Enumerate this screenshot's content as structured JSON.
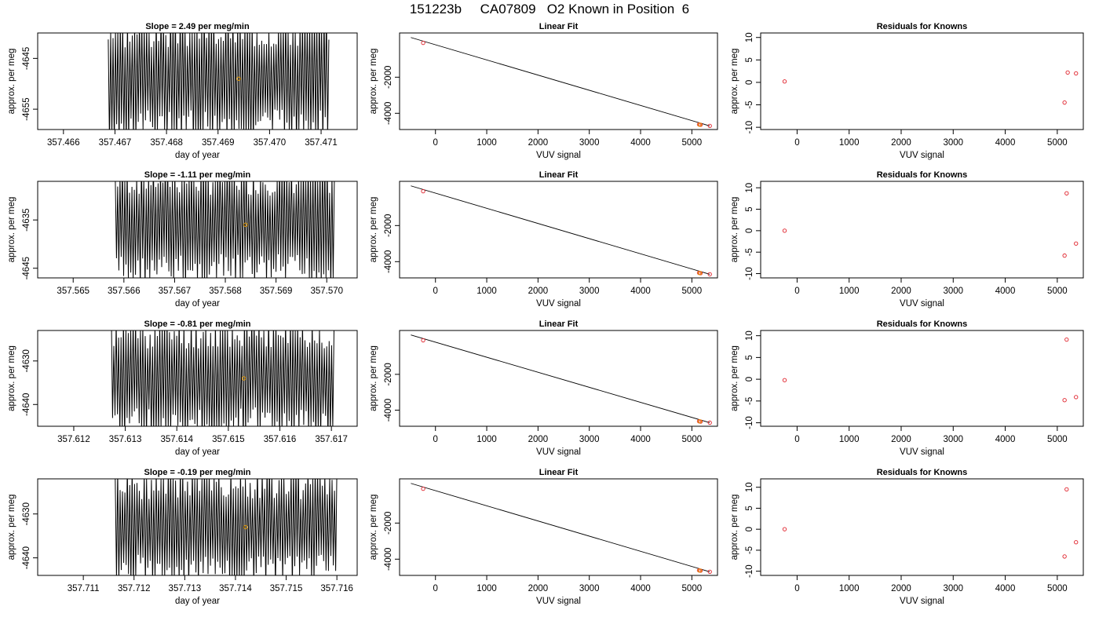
{
  "figure": {
    "title": "151223b     CA07809   O2 Known in Position  6"
  },
  "colors": {
    "line": "#000000",
    "marker_known": "#e0202a",
    "marker_current": "#e69a00",
    "frame": "#000000"
  },
  "chart_data": [
    {
      "type": "line",
      "row": 0,
      "title": "Slope =  2.49  per meg/min",
      "xlabel": "day of year",
      "ylabel": "approx. per meg",
      "xlim": [
        357.4655,
        357.4717
      ],
      "ylim": [
        -4659,
        -4640
      ],
      "xticks": [
        357.466,
        357.467,
        357.468,
        357.469,
        357.47,
        357.471
      ],
      "xtick_labels": [
        "357.466",
        "357.467",
        "357.468",
        "357.469",
        "357.470",
        "357.471"
      ],
      "yticks": [
        -4645,
        -4655
      ],
      "ytick_labels": [
        "-4645",
        "-4655"
      ],
      "signal": {
        "x_start": 357.46687,
        "x_end": 357.47115,
        "center": -4649,
        "amplitude": 11,
        "cycles": 92,
        "seed": 3
      },
      "current_point": {
        "x": 357.4694,
        "y": -4649
      }
    },
    {
      "type": "scatter",
      "row": 0,
      "title": "Linear Fit",
      "xlabel": "VUV signal",
      "ylabel": "approx. per meg",
      "xlim": [
        -700,
        5500
      ],
      "ylim": [
        -4900,
        450
      ],
      "xticks": [
        0,
        1000,
        2000,
        3000,
        4000,
        5000
      ],
      "xtick_labels": [
        "0",
        "1000",
        "2000",
        "3000",
        "4000",
        "5000"
      ],
      "yticks": [
        -2000,
        -4000
      ],
      "ytick_labels": [
        "-2000",
        "-4000"
      ],
      "fit_line": {
        "x": [
          -480,
          5350
        ],
        "y": [
          200,
          -4700
        ]
      },
      "points": [
        {
          "x": -240,
          "y": -100
        },
        {
          "x": 5140,
          "y": -4620
        },
        {
          "x": 5170,
          "y": -4640
        },
        {
          "x": 5350,
          "y": -4700
        }
      ],
      "current_point": {
        "x": 5155,
        "y": -4630
      }
    },
    {
      "type": "scatter",
      "row": 0,
      "title": "Residuals for Knowns",
      "xlabel": "VUV signal",
      "ylabel": "approx. per meg",
      "xlim": [
        -700,
        5500
      ],
      "ylim": [
        -10.5,
        11
      ],
      "xticks": [
        0,
        1000,
        2000,
        3000,
        4000,
        5000
      ],
      "xtick_labels": [
        "0",
        "1000",
        "2000",
        "3000",
        "4000",
        "5000"
      ],
      "yticks": [
        10,
        5,
        0,
        -5,
        -10
      ],
      "ytick_labels": [
        "10",
        "5",
        "0",
        "-5",
        "-10"
      ],
      "points": [
        {
          "x": -240,
          "y": 0.2
        },
        {
          "x": 5140,
          "y": -4.5
        },
        {
          "x": 5200,
          "y": 2.2
        },
        {
          "x": 5360,
          "y": 2
        }
      ]
    },
    {
      "type": "line",
      "row": 1,
      "title": "Slope =  -1.11  per meg/min",
      "xlabel": "day of year",
      "ylabel": "approx. per meg",
      "xlim": [
        357.5643,
        357.5706
      ],
      "ylim": [
        -4647,
        -4627
      ],
      "xticks": [
        357.565,
        357.566,
        357.567,
        357.568,
        357.569,
        357.57
      ],
      "xtick_labels": [
        "357.565",
        "357.566",
        "357.567",
        "357.568",
        "357.569",
        "357.570"
      ],
      "yticks": [
        -4635,
        -4645
      ],
      "ytick_labels": [
        "-4635",
        "-4645"
      ],
      "signal": {
        "x_start": 357.56583,
        "x_end": 357.57015,
        "center": -4636,
        "amplitude": 11,
        "cycles": 92,
        "seed": 7
      },
      "current_point": {
        "x": 357.5684,
        "y": -4636
      }
    },
    {
      "type": "scatter",
      "row": 1,
      "title": "Linear Fit",
      "xlabel": "VUV signal",
      "ylabel": "approx. per meg",
      "xlim": [
        -700,
        5500
      ],
      "ylim": [
        -4900,
        450
      ],
      "xticks": [
        0,
        1000,
        2000,
        3000,
        4000,
        5000
      ],
      "xtick_labels": [
        "0",
        "1000",
        "2000",
        "3000",
        "4000",
        "5000"
      ],
      "yticks": [
        -2000,
        -4000
      ],
      "ytick_labels": [
        "-2000",
        "-4000"
      ],
      "fit_line": {
        "x": [
          -480,
          5350
        ],
        "y": [
          200,
          -4700
        ]
      },
      "points": [
        {
          "x": -240,
          "y": -100
        },
        {
          "x": 5140,
          "y": -4620
        },
        {
          "x": 5170,
          "y": -4640
        },
        {
          "x": 5350,
          "y": -4700
        }
      ],
      "current_point": {
        "x": 5155,
        "y": -4630
      }
    },
    {
      "type": "scatter",
      "row": 1,
      "title": "Residuals for Knowns",
      "xlabel": "VUV signal",
      "ylabel": "approx. per meg",
      "xlim": [
        -700,
        5500
      ],
      "ylim": [
        -11,
        11.5
      ],
      "xticks": [
        0,
        1000,
        2000,
        3000,
        4000,
        5000
      ],
      "xtick_labels": [
        "0",
        "1000",
        "2000",
        "3000",
        "4000",
        "5000"
      ],
      "yticks": [
        10,
        5,
        0,
        -5,
        -10
      ],
      "ytick_labels": [
        "10",
        "5",
        "0",
        "-5",
        "-10"
      ],
      "points": [
        {
          "x": -240,
          "y": 0
        },
        {
          "x": 5140,
          "y": -5.8
        },
        {
          "x": 5180,
          "y": 8.7
        },
        {
          "x": 5360,
          "y": -3
        }
      ]
    },
    {
      "type": "line",
      "row": 2,
      "title": "Slope =  -0.81  per meg/min",
      "xlabel": "day of year",
      "ylabel": "approx. per meg",
      "xlim": [
        357.6113,
        357.6175
      ],
      "ylim": [
        -4645,
        -4623
      ],
      "xticks": [
        357.612,
        357.613,
        357.614,
        357.615,
        357.616,
        357.617
      ],
      "xtick_labels": [
        "357.612",
        "357.613",
        "357.614",
        "357.615",
        "357.616",
        "357.617"
      ],
      "yticks": [
        -4630,
        -4640
      ],
      "ytick_labels": [
        "-4630",
        "-4640"
      ],
      "signal": {
        "x_start": 357.61273,
        "x_end": 357.61705,
        "center": -4634,
        "amplitude": 12,
        "cycles": 92,
        "seed": 11
      },
      "current_point": {
        "x": 357.6153,
        "y": -4634
      }
    },
    {
      "type": "scatter",
      "row": 2,
      "title": "Linear Fit",
      "xlabel": "VUV signal",
      "ylabel": "approx. per meg",
      "xlim": [
        -700,
        5500
      ],
      "ylim": [
        -4900,
        450
      ],
      "xticks": [
        0,
        1000,
        2000,
        3000,
        4000,
        5000
      ],
      "xtick_labels": [
        "0",
        "1000",
        "2000",
        "3000",
        "4000",
        "5000"
      ],
      "yticks": [
        -2000,
        -4000
      ],
      "ytick_labels": [
        "-2000",
        "-4000"
      ],
      "fit_line": {
        "x": [
          -480,
          5350
        ],
        "y": [
          200,
          -4700
        ]
      },
      "points": [
        {
          "x": -240,
          "y": -100
        },
        {
          "x": 5140,
          "y": -4620
        },
        {
          "x": 5170,
          "y": -4640
        },
        {
          "x": 5350,
          "y": -4700
        }
      ],
      "current_point": {
        "x": 5155,
        "y": -4630
      }
    },
    {
      "type": "scatter",
      "row": 2,
      "title": "Residuals for Knowns",
      "xlabel": "VUV signal",
      "ylabel": "approx. per meg",
      "xlim": [
        -700,
        5500
      ],
      "ylim": [
        -10.8,
        11.2
      ],
      "xticks": [
        0,
        1000,
        2000,
        3000,
        4000,
        5000
      ],
      "xtick_labels": [
        "0",
        "1000",
        "2000",
        "3000",
        "4000",
        "5000"
      ],
      "yticks": [
        10,
        5,
        0,
        -5,
        -10
      ],
      "ytick_labels": [
        "10",
        "5",
        "0",
        "-5",
        "-10"
      ],
      "points": [
        {
          "x": -240,
          "y": -0.2
        },
        {
          "x": 5140,
          "y": -4.8
        },
        {
          "x": 5180,
          "y": 9.1
        },
        {
          "x": 5360,
          "y": -4.1
        }
      ]
    },
    {
      "type": "line",
      "row": 3,
      "title": "Slope =  -0.19  per meg/min",
      "xlabel": "day of year",
      "ylabel": "approx. per meg",
      "xlim": [
        357.7101,
        357.7164
      ],
      "ylim": [
        -4644,
        -4622
      ],
      "xticks": [
        357.711,
        357.712,
        357.713,
        357.714,
        357.715,
        357.716
      ],
      "xtick_labels": [
        "357.711",
        "357.712",
        "357.713",
        "357.714",
        "357.715",
        "357.716"
      ],
      "yticks": [
        -4630,
        -4640
      ],
      "ytick_labels": [
        "-4630",
        "-4640"
      ],
      "signal": {
        "x_start": 357.71163,
        "x_end": 357.716,
        "center": -4633,
        "amplitude": 11.5,
        "cycles": 92,
        "seed": 19
      },
      "current_point": {
        "x": 357.7142,
        "y": -4633
      }
    },
    {
      "type": "scatter",
      "row": 3,
      "title": "Linear Fit",
      "xlabel": "VUV signal",
      "ylabel": "approx. per meg",
      "xlim": [
        -700,
        5500
      ],
      "ylim": [
        -4900,
        450
      ],
      "xticks": [
        0,
        1000,
        2000,
        3000,
        4000,
        5000
      ],
      "xtick_labels": [
        "0",
        "1000",
        "2000",
        "3000",
        "4000",
        "5000"
      ],
      "yticks": [
        -2000,
        -4000
      ],
      "ytick_labels": [
        "-2000",
        "-4000"
      ],
      "fit_line": {
        "x": [
          -480,
          5350
        ],
        "y": [
          200,
          -4700
        ]
      },
      "points": [
        {
          "x": -240,
          "y": -100
        },
        {
          "x": 5140,
          "y": -4620
        },
        {
          "x": 5170,
          "y": -4640
        },
        {
          "x": 5350,
          "y": -4700
        }
      ],
      "current_point": {
        "x": 5155,
        "y": -4630
      }
    },
    {
      "type": "scatter",
      "row": 3,
      "title": "Residuals for Knowns",
      "xlabel": "VUV signal",
      "ylabel": "approx. per meg",
      "xlim": [
        -700,
        5500
      ],
      "ylim": [
        -11,
        12
      ],
      "xticks": [
        0,
        1000,
        2000,
        3000,
        4000,
        5000
      ],
      "xtick_labels": [
        "0",
        "1000",
        "2000",
        "3000",
        "4000",
        "5000"
      ],
      "yticks": [
        10,
        5,
        0,
        -5,
        -10
      ],
      "ytick_labels": [
        "10",
        "5",
        "0",
        "-5",
        "-10"
      ],
      "points": [
        {
          "x": -240,
          "y": 0
        },
        {
          "x": 5140,
          "y": -6.5
        },
        {
          "x": 5180,
          "y": 9.5
        },
        {
          "x": 5360,
          "y": -3.1
        }
      ]
    }
  ]
}
